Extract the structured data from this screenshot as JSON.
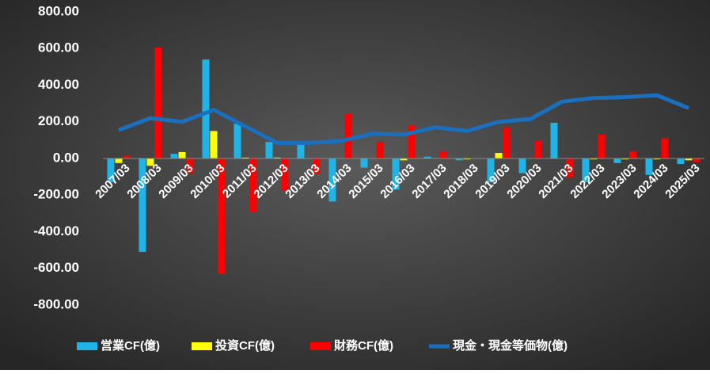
{
  "chart_data": {
    "type": "bar-line",
    "categories": [
      "2007/03",
      "2008/03",
      "2009/03",
      "2010/03",
      "2011/03",
      "2012/03",
      "2013/03",
      "2014/03",
      "2015/03",
      "2016/03",
      "2017/03",
      "2018/03",
      "2019/03",
      "2020/03",
      "2021/03",
      "2022/03",
      "2023/03",
      "2024/03",
      "2025/03"
    ],
    "series": [
      {
        "name": "営業CF(億)",
        "color": "#1fb4e8",
        "kind": "bar",
        "values": [
          -130,
          -510,
          25,
          540,
          190,
          90,
          80,
          -235,
          -50,
          -170,
          10,
          -10,
          -130,
          -80,
          195,
          -130,
          -25,
          -90,
          -30
        ]
      },
      {
        "name": "投資CF(億)",
        "color": "#ffff00",
        "kind": "bar",
        "values": [
          -25,
          -40,
          35,
          150,
          5,
          5,
          0,
          0,
          0,
          -10,
          0,
          -5,
          30,
          0,
          0,
          -5,
          -5,
          -5,
          -10
        ]
      },
      {
        "name": "財務CF(億)",
        "color": "#ff0000",
        "kind": "bar",
        "values": [
          15,
          605,
          -80,
          -630,
          -290,
          -175,
          -85,
          245,
          90,
          180,
          40,
          0,
          170,
          95,
          -105,
          130,
          40,
          110,
          -20
        ]
      },
      {
        "name": "現金・現金等価物(億)",
        "color": "#1a6fbf",
        "kind": "line",
        "values": [
          155,
          220,
          200,
          265,
          175,
          85,
          85,
          95,
          135,
          130,
          170,
          150,
          200,
          215,
          310,
          330,
          335,
          345,
          275
        ]
      }
    ],
    "ylim": [
      -800,
      800
    ],
    "yticks": [
      {
        "value": -800,
        "label": "-800.00"
      },
      {
        "value": -600,
        "label": "-600.00"
      },
      {
        "value": -400,
        "label": "-400.00"
      },
      {
        "value": -200,
        "label": "-200.00"
      },
      {
        "value": 0,
        "label": "0.00"
      },
      {
        "value": 200,
        "label": "200.00"
      },
      {
        "value": 400,
        "label": "400.00"
      },
      {
        "value": 600,
        "label": "600.00"
      },
      {
        "value": 800,
        "label": "800.00"
      }
    ],
    "legend": "bottom"
  }
}
